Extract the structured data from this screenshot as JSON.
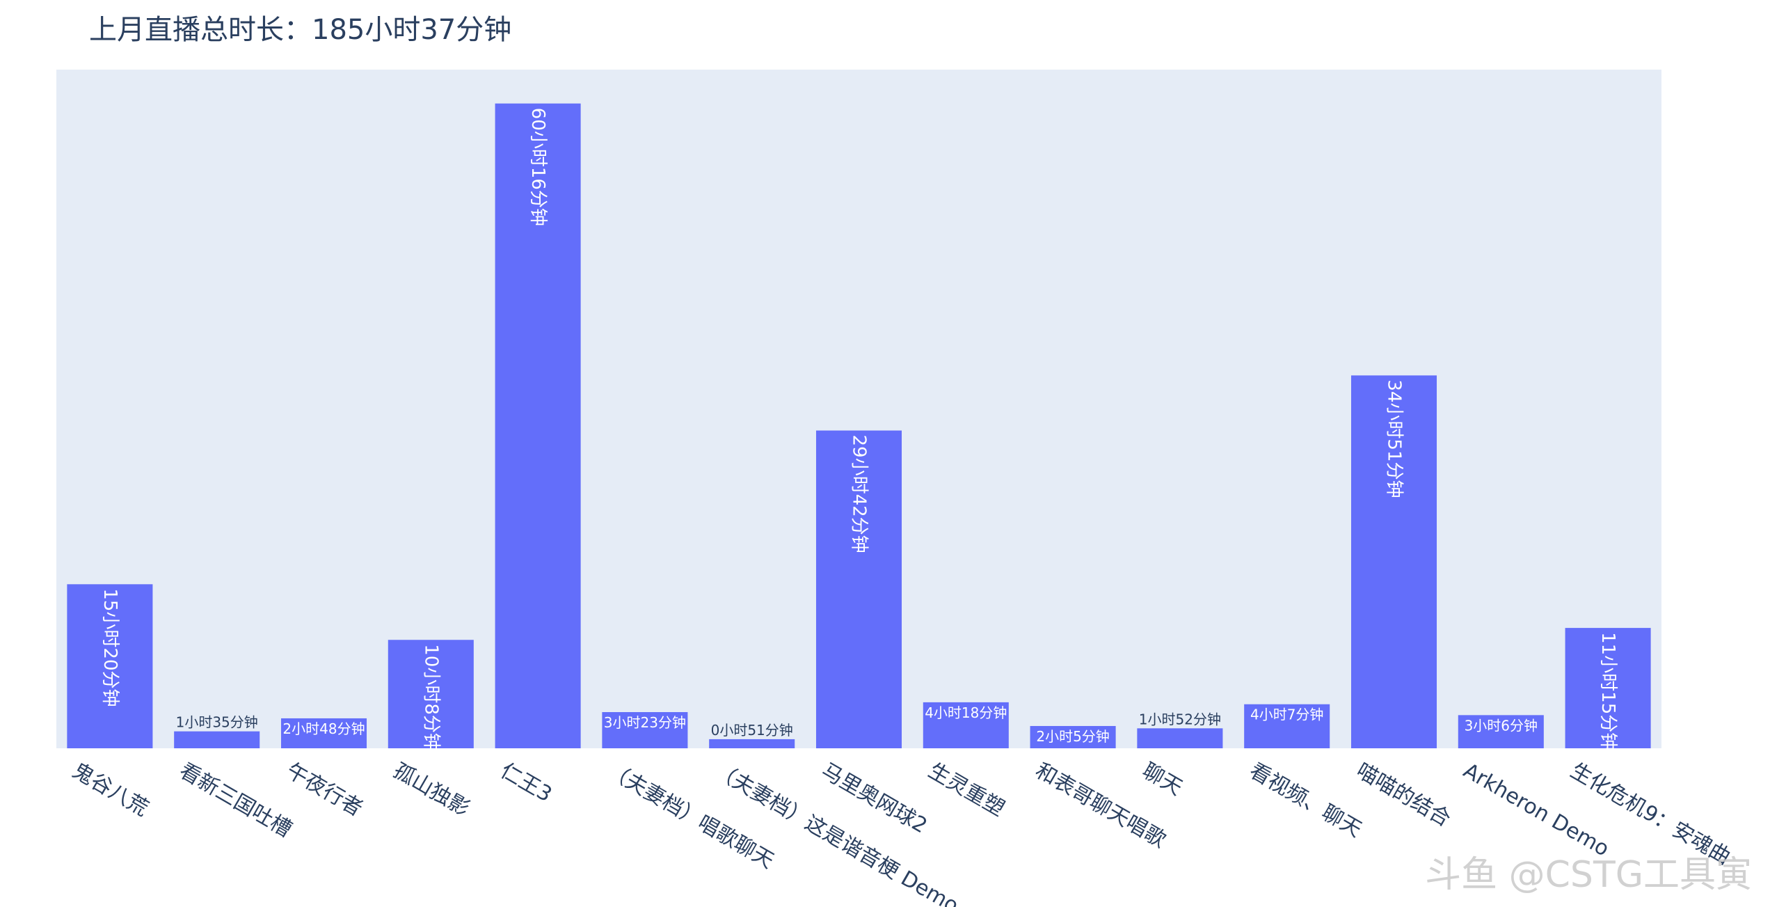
{
  "title": "上月直播总时长：185小时37分钟",
  "watermark": "斗鱼 @CSTG工具寅",
  "colors": {
    "bar": "#636efa",
    "plot_bg": "#e5ecf6",
    "axis_text": "#2a3f5f",
    "label_inside": "#ffffff",
    "label_outside": "#2a3f5f"
  },
  "chart_data": {
    "type": "bar",
    "title": "上月直播总时长：185小时37分钟",
    "xlabel": "",
    "ylabel": "",
    "categories": [
      "鬼谷八荒",
      "看新三国吐槽",
      "午夜行者",
      "孤山独影",
      "仁王3",
      "（夫妻档）唱歌聊天",
      "（夫妻档）这是谐音梗 Demo",
      "马里奥网球2",
      "生灵重塑",
      "和表哥聊天唱歌",
      "聊天",
      "看视频、聊天",
      "喵喵的结合",
      "Arkheron Demo",
      "生化危机9：安魂曲"
    ],
    "values": [
      920,
      95,
      168,
      608,
      3616,
      203,
      51,
      1782,
      258,
      125,
      112,
      247,
      2091,
      186,
      675
    ],
    "text_labels": [
      "15小时20分钟",
      "1小时35分钟",
      "2小时48分钟",
      "10小时8分钟",
      "60小时16分钟",
      "3小时23分钟",
      "0小时51分钟",
      "29小时42分钟",
      "4小时18分钟",
      "2小时5分钟",
      "1小时52分钟",
      "4小时7分钟",
      "34小时51分钟",
      "3小时6分钟",
      "11小时15分钟"
    ],
    "value_unit": "minutes",
    "ylim": [
      0,
      3806
    ],
    "yaxis_visible": false,
    "grid": false
  }
}
